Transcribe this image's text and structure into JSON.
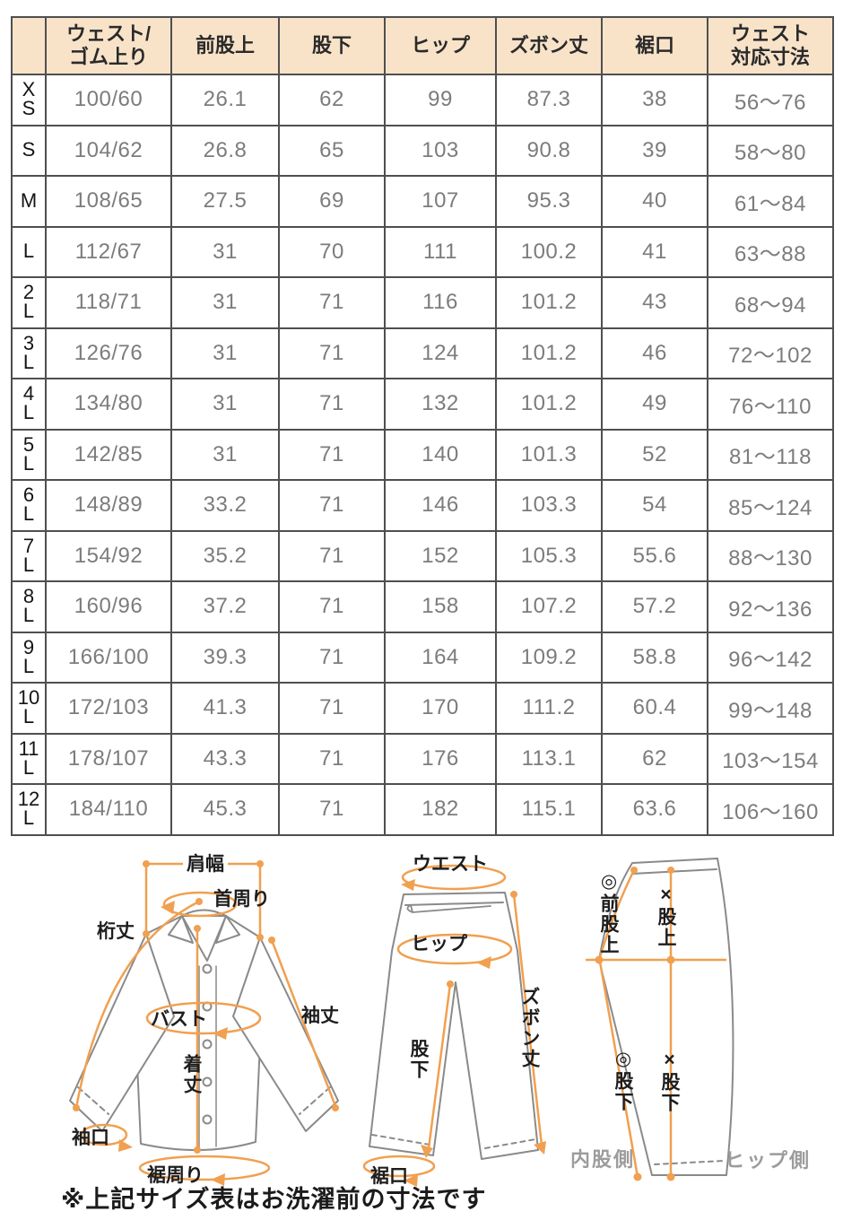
{
  "table": {
    "columns": [
      "",
      "ウェスト/\nゴム上り",
      "前股上",
      "股下",
      "ヒップ",
      "ズボン丈",
      "裾口",
      "ウェスト\n対応寸法"
    ],
    "rows": [
      {
        "size": "XS",
        "values": [
          "100/60",
          "26.1",
          "62",
          "99",
          "87.3",
          "38",
          "56～76"
        ]
      },
      {
        "size": "S",
        "values": [
          "104/62",
          "26.8",
          "65",
          "103",
          "90.8",
          "39",
          "58～80"
        ]
      },
      {
        "size": "M",
        "values": [
          "108/65",
          "27.5",
          "69",
          "107",
          "95.3",
          "40",
          "61～84"
        ]
      },
      {
        "size": "L",
        "values": [
          "112/67",
          "31",
          "70",
          "111",
          "100.2",
          "41",
          "63～88"
        ]
      },
      {
        "size": "2L",
        "values": [
          "118/71",
          "31",
          "71",
          "116",
          "101.2",
          "43",
          "68～94"
        ]
      },
      {
        "size": "3L",
        "values": [
          "126/76",
          "31",
          "71",
          "124",
          "101.2",
          "46",
          "72～102"
        ]
      },
      {
        "size": "4L",
        "values": [
          "134/80",
          "31",
          "71",
          "132",
          "101.2",
          "49",
          "76～110"
        ]
      },
      {
        "size": "5L",
        "values": [
          "142/85",
          "31",
          "71",
          "140",
          "101.3",
          "52",
          "81～118"
        ]
      },
      {
        "size": "6L",
        "values": [
          "148/89",
          "33.2",
          "71",
          "146",
          "103.3",
          "54",
          "85～124"
        ]
      },
      {
        "size": "7L",
        "values": [
          "154/92",
          "35.2",
          "71",
          "152",
          "105.3",
          "55.6",
          "88～130"
        ]
      },
      {
        "size": "8L",
        "values": [
          "160/96",
          "37.2",
          "71",
          "158",
          "107.2",
          "57.2",
          "92～136"
        ]
      },
      {
        "size": "9L",
        "values": [
          "166/100",
          "39.3",
          "71",
          "164",
          "109.2",
          "58.8",
          "96～142"
        ]
      },
      {
        "size": "10L",
        "values": [
          "172/103",
          "41.3",
          "71",
          "170",
          "111.2",
          "60.4",
          "99～148"
        ]
      },
      {
        "size": "11L",
        "values": [
          "178/107",
          "43.3",
          "71",
          "176",
          "113.1",
          "62",
          "103～154"
        ]
      },
      {
        "size": "12L",
        "values": [
          "184/110",
          "45.3",
          "71",
          "182",
          "115.1",
          "63.6",
          "106～160"
        ]
      }
    ]
  },
  "diagram": {
    "shirt": {
      "shoulder_width": "肩幅",
      "neck": "首周り",
      "sleeve_total": "桁丈",
      "bust": "バスト",
      "sleeve_length": "袖丈",
      "body_length": "着丈",
      "cuff": "袖口",
      "hem_around": "裾周り"
    },
    "pants_front": {
      "waist": "ウエスト",
      "hip": "ヒップ",
      "pants_length": "ズボン丈",
      "inseam": "股下",
      "hem": "裾口"
    },
    "pants_side": {
      "front_rise": "◎前股上",
      "rise": "×股上",
      "inseam_inner": "◎股下",
      "inseam_side": "×股下",
      "inner_side": "内股側",
      "hip_side": "ヒップ側"
    }
  },
  "footnote": "※上記サイズ表はお洗濯前の寸法です",
  "colors": {
    "header_bg": "#f8e3c9",
    "table_border": "#4f4f4f",
    "data_text": "#7c7c7c",
    "accent_orange": "#f0a050",
    "outline_gray": "#8a8a8a"
  }
}
